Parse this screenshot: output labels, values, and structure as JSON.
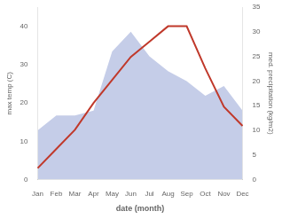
{
  "chart_data": {
    "type": "line",
    "xlabel": "date (month)",
    "ylabel": "max temp (C)",
    "y2label": "med. precipitation (kg/m2)",
    "categories": [
      "Jan",
      "Feb",
      "Mar",
      "Apr",
      "May",
      "Jun",
      "Jul",
      "Aug",
      "Sep",
      "Oct",
      "Nov",
      "Dec"
    ],
    "series": [
      {
        "type": "line",
        "color": "#c0392b",
        "values": [
          3,
          8,
          13,
          20,
          26,
          32,
          36,
          40,
          40,
          29,
          19,
          14
        ]
      },
      {
        "type": "area",
        "color": "#c5cde8",
        "axis": "y2",
        "values": [
          10,
          13,
          13,
          14,
          26,
          30,
          25,
          22,
          20,
          17,
          19,
          14
        ]
      }
    ],
    "ylim": [
      0,
      45
    ],
    "yticks": [
      0,
      10,
      20,
      30,
      40
    ],
    "y2lim": [
      0,
      35
    ],
    "y2ticks": [
      0,
      5,
      10,
      15,
      20,
      25,
      30,
      35
    ],
    "grid": false
  }
}
